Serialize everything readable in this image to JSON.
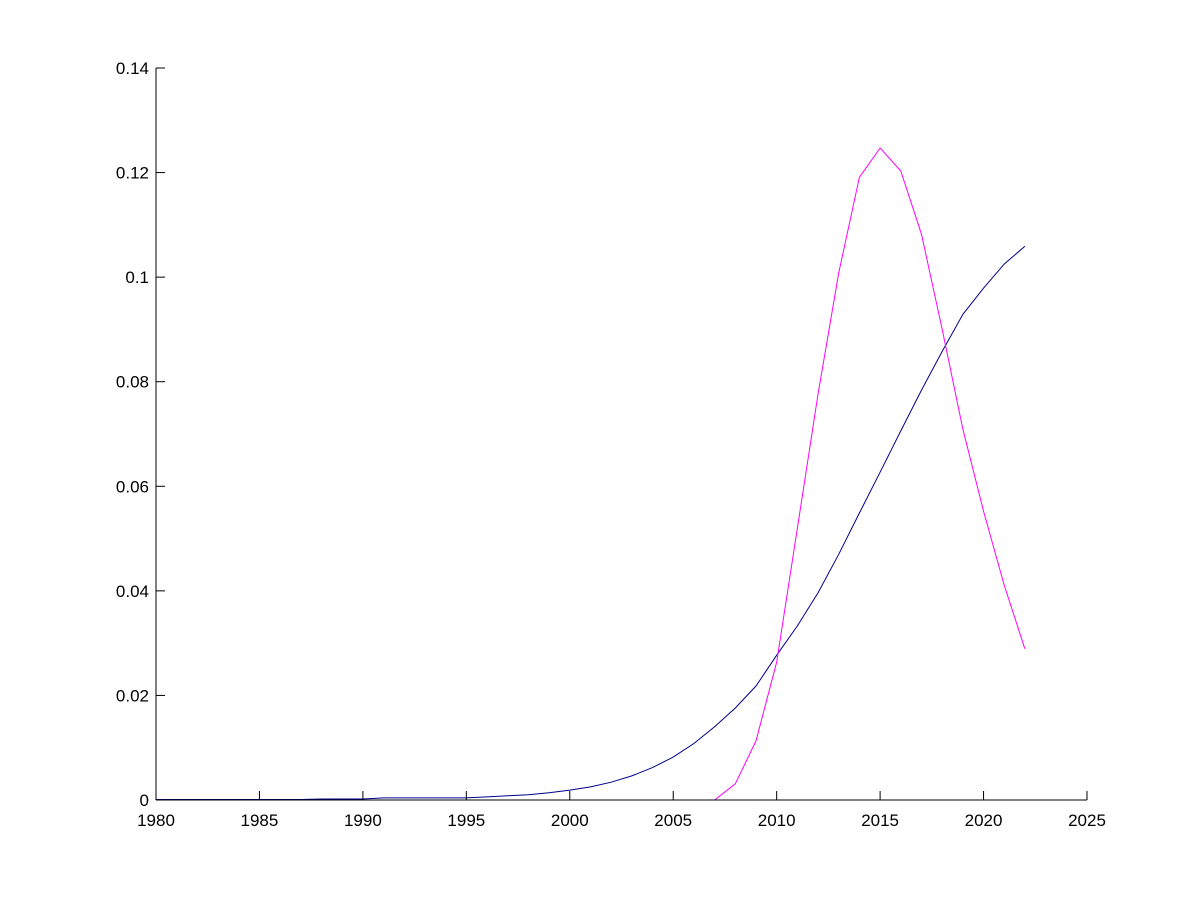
{
  "chart_data": {
    "type": "line",
    "title": "",
    "xlabel": "",
    "ylabel": "",
    "xlim": [
      1980,
      2025
    ],
    "ylim": [
      0,
      0.14
    ],
    "grid": false,
    "legend": "none",
    "x_ticks": [
      "1980",
      "1985",
      "1990",
      "1995",
      "2000",
      "2005",
      "2010",
      "2015",
      "2020",
      "2025"
    ],
    "y_ticks": [
      "0",
      "0.02",
      "0.04",
      "0.06",
      "0.08",
      "0.1",
      "0.12",
      "0.14"
    ],
    "x": [
      1980,
      1981,
      1982,
      1983,
      1984,
      1985,
      1986,
      1987,
      1988,
      1989,
      1990,
      1991,
      1992,
      1993,
      1994,
      1995,
      1996,
      1997,
      1998,
      1999,
      2000,
      2001,
      2002,
      2003,
      2004,
      2005,
      2006,
      2007,
      2008,
      2009,
      2010,
      2011,
      2012,
      2013,
      2014,
      2015,
      2016,
      2017,
      2018,
      2019,
      2020,
      2021,
      2022
    ],
    "series": [
      {
        "color": "#00008b",
        "values": [
          0.0001,
          0.0001,
          0.0001,
          0.0001,
          0.0001,
          0.0001,
          0.0001,
          0.0001,
          0.0002,
          0.0002,
          0.0002,
          0.0004,
          0.0004,
          0.0004,
          0.0004,
          0.0004,
          0.0006,
          0.0008,
          0.001,
          0.0014,
          0.0019,
          0.0025,
          0.0034,
          0.0046,
          0.0062,
          0.0082,
          0.0108,
          0.014,
          0.0176,
          0.0218,
          0.0277,
          0.0333,
          0.0396,
          0.047,
          0.0549,
          0.0627,
          0.0706,
          0.0784,
          0.0858,
          0.0929,
          0.0979,
          0.1025,
          0.1059
        ]
      },
      {
        "color": "#ff00ff",
        "values": [
          0,
          0,
          0,
          0,
          0,
          0,
          0,
          0,
          0,
          0,
          0,
          0,
          0,
          0,
          0,
          0,
          0,
          0,
          0,
          0,
          0,
          0,
          0,
          0,
          0,
          0,
          0,
          0,
          0.0031,
          0.0113,
          0.0264,
          0.052,
          0.0776,
          0.1008,
          0.1191,
          0.1247,
          0.1203,
          0.1082,
          0.09,
          0.0709,
          0.0552,
          0.0411,
          0.0289
        ]
      }
    ]
  }
}
